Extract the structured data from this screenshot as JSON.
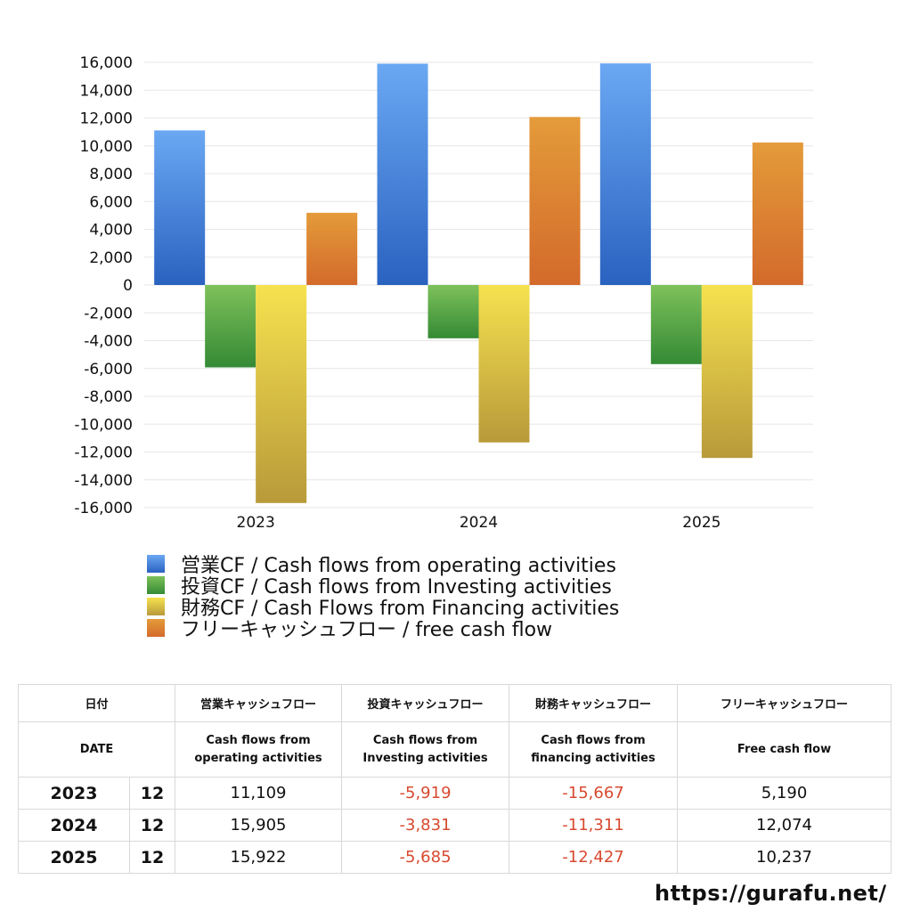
{
  "chart_data": {
    "type": "bar",
    "categories": [
      "2023",
      "2024",
      "2025"
    ],
    "series": [
      {
        "name": "営業CF / Cash flows from operating activities",
        "values": [
          11109,
          15905,
          15922
        ],
        "color_top": "#6aa8f3",
        "color_bottom": "#2a62c0"
      },
      {
        "name": "投資CF / Cash flows from Investing activities",
        "values": [
          -5919,
          -3831,
          -5685
        ],
        "color_top": "#7ec15a",
        "color_bottom": "#348a35"
      },
      {
        "name": "財務CF / Cash Flows from Financing activities",
        "values": [
          -15667,
          -11311,
          -12427
        ],
        "color_top": "#f6e24f",
        "color_bottom": "#b89a3a"
      },
      {
        "name": "フリーキャッシュフロー / free cash flow",
        "values": [
          5190,
          12074,
          10237
        ],
        "color_top": "#e49b3a",
        "color_bottom": "#d36a2b"
      }
    ],
    "ylim": [
      -16000,
      16000
    ],
    "yticks": [
      16000,
      14000,
      12000,
      10000,
      8000,
      6000,
      4000,
      2000,
      0,
      -2000,
      -4000,
      -6000,
      -8000,
      -10000,
      -12000,
      -14000,
      -16000
    ],
    "ytick_labels": [
      "16,000",
      "14,000",
      "12,000",
      "10,000",
      "8,000",
      "6,000",
      "4,000",
      "2,000",
      "0",
      "-2,000",
      "-4,000",
      "-6,000",
      "-8,000",
      "-10,000",
      "-12,000",
      "-14,000",
      "-16,000"
    ],
    "grid": true,
    "legend_position": "bottom"
  },
  "table": {
    "header_jp": [
      "日付",
      "",
      "営業キャッシュフロー",
      "投資キャッシュフロー",
      "財務キャッシュフロー",
      "フリーキャッシュフロー"
    ],
    "header_en": [
      "DATE",
      "",
      "Cash flows from\noperating activities",
      "Cash flows from\nInvesting activities",
      "Cash flows from\nfinancing activities",
      "Free cash flow"
    ],
    "rows": [
      {
        "year": "2023",
        "month": "12",
        "operating": "11,109",
        "investing": "-5,919",
        "financing": "-15,667",
        "free": "5,190"
      },
      {
        "year": "2024",
        "month": "12",
        "operating": "15,905",
        "investing": "-3,831",
        "financing": "-11,311",
        "free": "12,074"
      },
      {
        "year": "2025",
        "month": "12",
        "operating": "15,922",
        "investing": "-5,685",
        "financing": "-12,427",
        "free": "10,237"
      }
    ]
  },
  "site_url": "https://gurafu.net/",
  "colors": {
    "negative_text": "#d8492f",
    "grid": "#e6e6e6",
    "table_border": "#d9d9d9"
  }
}
